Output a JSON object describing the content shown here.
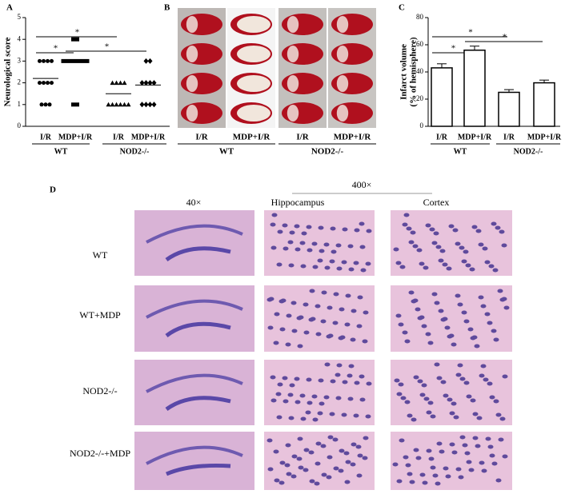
{
  "chart_data": [
    {
      "type": "dot",
      "panel": "A",
      "ylabel": "Neurological score",
      "categories": [
        "I/R",
        "MDP+I/R",
        "I/R",
        "MDP+I/R"
      ],
      "groups": [
        "WT",
        "NOD2-/-"
      ],
      "markers": [
        "circle",
        "square",
        "triangle",
        "diamond"
      ],
      "points": [
        [
          3,
          3,
          3,
          3,
          2,
          2,
          2,
          2,
          1,
          1,
          1
        ],
        [
          4,
          4,
          3,
          3,
          3,
          3,
          3,
          3,
          3,
          1,
          1
        ],
        [
          2,
          2,
          2,
          2,
          1,
          1,
          1,
          1,
          1,
          1
        ],
        [
          3,
          3,
          2,
          2,
          2,
          2,
          1,
          1,
          1,
          1
        ]
      ],
      "means": [
        2.2,
        3.0,
        1.5,
        1.9
      ],
      "ylim": [
        0,
        5
      ],
      "yticks": [
        0,
        1,
        2,
        3,
        4,
        5
      ],
      "color": "#000000",
      "annotations": [
        "*",
        "*",
        "*"
      ]
    },
    {
      "type": "bar",
      "panel": "C",
      "ylabel": [
        "Infarct volume",
        "(% of hemisphere)"
      ],
      "categories": [
        "I/R",
        "MDP+I/R",
        "I/R",
        "MDP+I/R"
      ],
      "groups": [
        "WT",
        "NOD2-/-"
      ],
      "values": [
        43,
        56,
        25,
        32
      ],
      "errors": [
        3,
        3,
        2,
        2
      ],
      "ylim": [
        0,
        80
      ],
      "yticks": [
        0,
        20,
        40,
        60,
        80
      ],
      "color": "#ffffff",
      "annotations": [
        "*",
        "*",
        "*"
      ]
    }
  ],
  "panel_b": {
    "label": "B",
    "categories": [
      "I/R",
      "MDP+I/R",
      "I/R",
      "MDP+I/R"
    ],
    "groups": [
      "WT",
      "NOD2-/-"
    ]
  },
  "panel_d": {
    "label": "D",
    "magnifications": [
      "40×",
      "400×"
    ],
    "columns": [
      "Hippocampus",
      "Cortex"
    ],
    "rows": [
      "WT",
      "WT+MDP",
      "NOD2-/-",
      "NOD2-/-+MDP"
    ]
  }
}
